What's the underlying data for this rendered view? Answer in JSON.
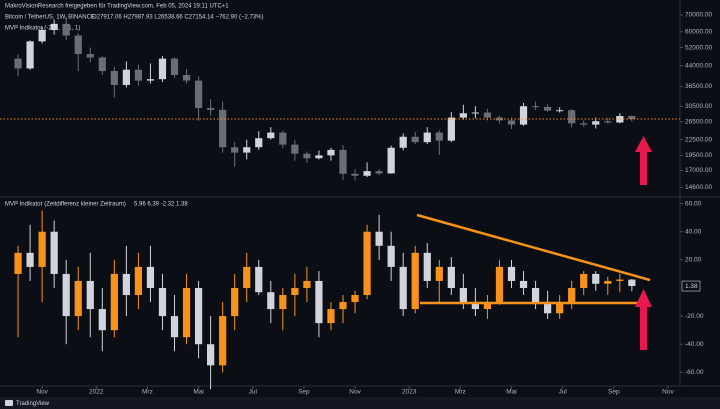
{
  "header": "MakroVisionResearch freigegeben für TradingView.com, Feb 05, 2024 19:11 UTC+1",
  "footer": "TradingView",
  "chart_data": [
    {
      "type": "candlestick",
      "title": "Bitcoin / TetherUS, 1W, BINANCE",
      "legend_values": "O27917.06  H27987.93  L26538.66  C27154.14  −762.90 (−2.73%)",
      "overlay_label": "MVP Indikator (-2, 1, 1, 1, 1)",
      "log_scale": true,
      "up_color": "#d1d4dc",
      "down_color": "#6a6d78",
      "price_line_color": "#f7931a",
      "x": [
        -4,
        -2,
        0,
        2,
        4,
        6,
        8,
        10,
        12,
        14,
        16,
        18,
        20,
        22,
        24,
        26,
        28,
        30,
        32,
        34,
        36,
        38,
        40,
        42,
        44,
        46,
        48,
        50,
        52,
        54,
        56,
        58,
        60,
        62,
        64,
        66,
        68,
        70,
        72,
        74,
        76,
        78,
        80,
        82,
        84,
        86,
        88,
        90,
        92,
        94,
        96,
        98
      ],
      "open": [
        47000,
        43000,
        55000,
        61000,
        64500,
        58000,
        49000,
        47500,
        42000,
        37000,
        42500,
        38500,
        39000,
        47000,
        40500,
        38500,
        30000,
        29500,
        21000,
        20000,
        21000,
        22800,
        24000,
        21500,
        19800,
        19000,
        19500,
        20500,
        16500,
        16200,
        16900,
        16550,
        20900,
        23100,
        22000,
        24000,
        22300,
        27500,
        28600,
        28800,
        27500,
        26800,
        25800,
        30500,
        30300,
        29300,
        29400,
        26100,
        25800,
        26600,
        26300,
        27917.06
      ],
      "high": [
        48800,
        55500,
        62500,
        67000,
        69000,
        59200,
        52000,
        48000,
        43500,
        45800,
        44500,
        45000,
        48200,
        47500,
        42800,
        40000,
        32500,
        31800,
        22000,
        22500,
        24300,
        25200,
        24500,
        22500,
        20200,
        20400,
        20900,
        21400,
        17200,
        18300,
        17200,
        21300,
        23800,
        24200,
        25200,
        24500,
        28900,
        30900,
        30500,
        29800,
        28000,
        27500,
        31400,
        31800,
        31000,
        30200,
        29700,
        26800,
        27500,
        27500,
        28600,
        27987.93
      ],
      "low": [
        40000,
        42500,
        54000,
        58500,
        55600,
        42000,
        45500,
        40500,
        33000,
        36200,
        36800,
        37500,
        38000,
        39500,
        37500,
        26700,
        28000,
        20000,
        17600,
        18800,
        20500,
        22500,
        20800,
        18600,
        18200,
        18800,
        18600,
        15600,
        15500,
        16000,
        16300,
        16500,
        20400,
        21600,
        21600,
        19600,
        22000,
        27000,
        27300,
        26800,
        26000,
        24800,
        25500,
        29500,
        29000,
        28800,
        25200,
        25300,
        24900,
        26000,
        26100,
        26538.66
      ],
      "close": [
        43000,
        55000,
        61000,
        64500,
        58000,
        49000,
        47500,
        42000,
        37000,
        42500,
        38500,
        39000,
        47000,
        40500,
        38500,
        30000,
        29500,
        21000,
        20000,
        21000,
        22800,
        24000,
        21500,
        19800,
        19000,
        19500,
        20500,
        16500,
        16200,
        16900,
        16550,
        20900,
        23100,
        22000,
        24000,
        22300,
        27500,
        28600,
        28800,
        27500,
        26800,
        25800,
        30500,
        30300,
        29300,
        29400,
        26100,
        25800,
        26600,
        26300,
        27900,
        27154.14
      ],
      "xlim": [
        -7,
        106
      ],
      "ylim": [
        13600,
        74500
      ],
      "yticks": [
        {
          "value": 70000,
          "label": "70000.00"
        },
        {
          "value": 60000,
          "label": "60000.00"
        },
        {
          "value": 52000,
          "label": "52000.00"
        },
        {
          "value": 44000,
          "label": "44000.00"
        },
        {
          "value": 36500,
          "label": "36500.00"
        },
        {
          "value": 30500,
          "label": "30500.00"
        },
        {
          "value": 26500,
          "label": "26500.00"
        },
        {
          "value": 22500,
          "label": "22500.00"
        },
        {
          "value": 19500,
          "label": "19500.00"
        },
        {
          "value": 17000,
          "label": "17000.00"
        },
        {
          "value": 14600,
          "label": "14600.00"
        }
      ]
    },
    {
      "type": "candlestick",
      "title": "MVP Indikator (Zeitdifferenz kleiner Zeitraum)",
      "legend_values": "5.96  6.39  -2.32  1.38",
      "value_label": "1.38",
      "log_scale": false,
      "up_color": "#f7931a",
      "down_color": "#d1d4dc",
      "x": [
        -4,
        -2,
        0,
        2,
        4,
        6,
        8,
        10,
        12,
        14,
        16,
        18,
        20,
        22,
        24,
        26,
        28,
        30,
        32,
        34,
        36,
        38,
        40,
        42,
        44,
        46,
        48,
        50,
        52,
        54,
        56,
        58,
        60,
        62,
        64,
        66,
        68,
        70,
        72,
        74,
        76,
        78,
        80,
        82,
        84,
        86,
        88,
        90,
        92,
        94,
        96,
        98
      ],
      "open": [
        10,
        25,
        15,
        40,
        10,
        -20,
        5,
        -15,
        -30,
        10,
        -5,
        15,
        0,
        -20,
        -35,
        0,
        -40,
        -55,
        -20,
        0,
        15,
        -3,
        -15,
        -5,
        0,
        5,
        -25,
        -15,
        -10,
        -5,
        40,
        30,
        15,
        -15,
        25,
        5,
        15,
        0,
        -10,
        -15,
        -10,
        15,
        5,
        0,
        -10,
        -18,
        -10,
        0,
        10,
        3,
        5,
        5.96
      ],
      "high": [
        30,
        45,
        55,
        48,
        20,
        15,
        25,
        0,
        20,
        30,
        25,
        30,
        10,
        -5,
        10,
        5,
        -20,
        -10,
        10,
        25,
        20,
        5,
        0,
        10,
        15,
        12,
        -10,
        -5,
        -2,
        45,
        52,
        40,
        25,
        30,
        32,
        20,
        22,
        10,
        0,
        -5,
        20,
        20,
        12,
        5,
        -2,
        -5,
        5,
        12,
        12,
        8,
        10,
        6.39
      ],
      "low": [
        -35,
        5,
        -10,
        0,
        -40,
        -30,
        -35,
        -45,
        -35,
        -20,
        -15,
        -10,
        -30,
        -45,
        -40,
        -50,
        -72,
        -60,
        -30,
        -10,
        -5,
        -25,
        -30,
        -20,
        -10,
        -35,
        -30,
        -25,
        -18,
        -8,
        20,
        5,
        -20,
        -18,
        0,
        -10,
        -5,
        -15,
        -20,
        -22,
        -12,
        0,
        -5,
        -15,
        -22,
        -22,
        -15,
        -5,
        -2,
        -5,
        -3,
        -2.32
      ],
      "close": [
        25,
        15,
        40,
        10,
        -20,
        5,
        -15,
        -30,
        10,
        -5,
        15,
        0,
        -20,
        -35,
        0,
        -40,
        -55,
        -20,
        0,
        15,
        -3,
        -15,
        -5,
        0,
        5,
        -25,
        -15,
        -10,
        -5,
        40,
        30,
        15,
        -15,
        25,
        5,
        15,
        0,
        -10,
        -15,
        -10,
        15,
        5,
        0,
        -10,
        -18,
        -10,
        0,
        10,
        3,
        5,
        6,
        1.38
      ],
      "xlim": [
        -7,
        106
      ],
      "ylim": [
        -69,
        64
      ],
      "yticks": [
        {
          "value": 60,
          "label": "60.00"
        },
        {
          "value": 40,
          "label": "40.00"
        },
        {
          "value": 20,
          "label": "20.00"
        },
        {
          "value": -20,
          "label": "-20.00"
        },
        {
          "value": -40,
          "label": "-40.00"
        },
        {
          "value": -60,
          "label": "-60.00"
        }
      ],
      "xticks": [
        {
          "value": 0,
          "label": "Nov"
        },
        {
          "value": 9,
          "label": "2022"
        },
        {
          "value": 17.5,
          "label": "Mrz"
        },
        {
          "value": 26,
          "label": "Mai"
        },
        {
          "value": 35,
          "label": "Jul"
        },
        {
          "value": 43.5,
          "label": "Sep"
        },
        {
          "value": 52,
          "label": "Nov"
        },
        {
          "value": 61,
          "label": "2023"
        },
        {
          "value": 69.5,
          "label": "Mrz"
        },
        {
          "value": 78,
          "label": "Mai"
        },
        {
          "value": 86.5,
          "label": "Jul"
        },
        {
          "value": 95,
          "label": "Sep"
        },
        {
          "value": 104,
          "label": "Nov"
        }
      ]
    }
  ]
}
